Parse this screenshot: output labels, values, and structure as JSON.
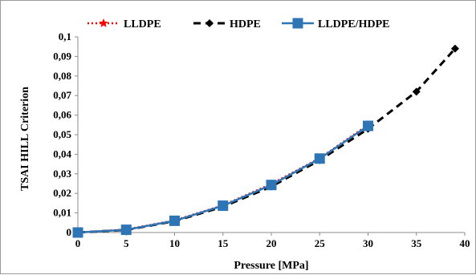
{
  "chart_data": {
    "type": "line",
    "xlabel": "Pressure [MPa]",
    "ylabel": "TSAI HILL Criterion",
    "xlim": [
      0,
      40
    ],
    "ylim": [
      0,
      0.1
    ],
    "x_ticks": [
      "0",
      "5",
      "10",
      "15",
      "20",
      "25",
      "30",
      "35",
      "40"
    ],
    "y_ticks": [
      "0",
      "0,01",
      "0,02",
      "0,03",
      "0,04",
      "0,05",
      "0,06",
      "0,07",
      "0,08",
      "0,09",
      "0,1"
    ],
    "grid": false,
    "legend_position": "top",
    "series": [
      {
        "name": "LLDPE",
        "color": "#ff0000",
        "line_style": "dotted",
        "marker": "star",
        "points": [
          [
            0,
            0
          ],
          [
            5,
            0.0015
          ],
          [
            10,
            0.0062
          ],
          [
            15,
            0.0139
          ],
          [
            20,
            0.0248
          ],
          [
            25,
            0.038
          ],
          [
            30,
            0.055
          ]
        ]
      },
      {
        "name": "HDPE",
        "color": "#000000",
        "line_style": "dashed",
        "marker": "diamond",
        "points": [
          [
            0,
            0
          ],
          [
            5,
            0.0013
          ],
          [
            10,
            0.0058
          ],
          [
            15,
            0.0132
          ],
          [
            20,
            0.0235
          ],
          [
            25,
            0.037
          ],
          [
            30,
            0.053
          ],
          [
            35,
            0.072
          ],
          [
            39,
            0.094
          ]
        ]
      },
      {
        "name": "LLDPE/HDPE",
        "color": "#2e75b6",
        "line_style": "solid",
        "marker": "square",
        "points": [
          [
            0,
            0
          ],
          [
            5,
            0.0014
          ],
          [
            10,
            0.006
          ],
          [
            15,
            0.0137
          ],
          [
            20,
            0.0243
          ],
          [
            25,
            0.0378
          ],
          [
            30,
            0.0545
          ]
        ]
      }
    ]
  }
}
